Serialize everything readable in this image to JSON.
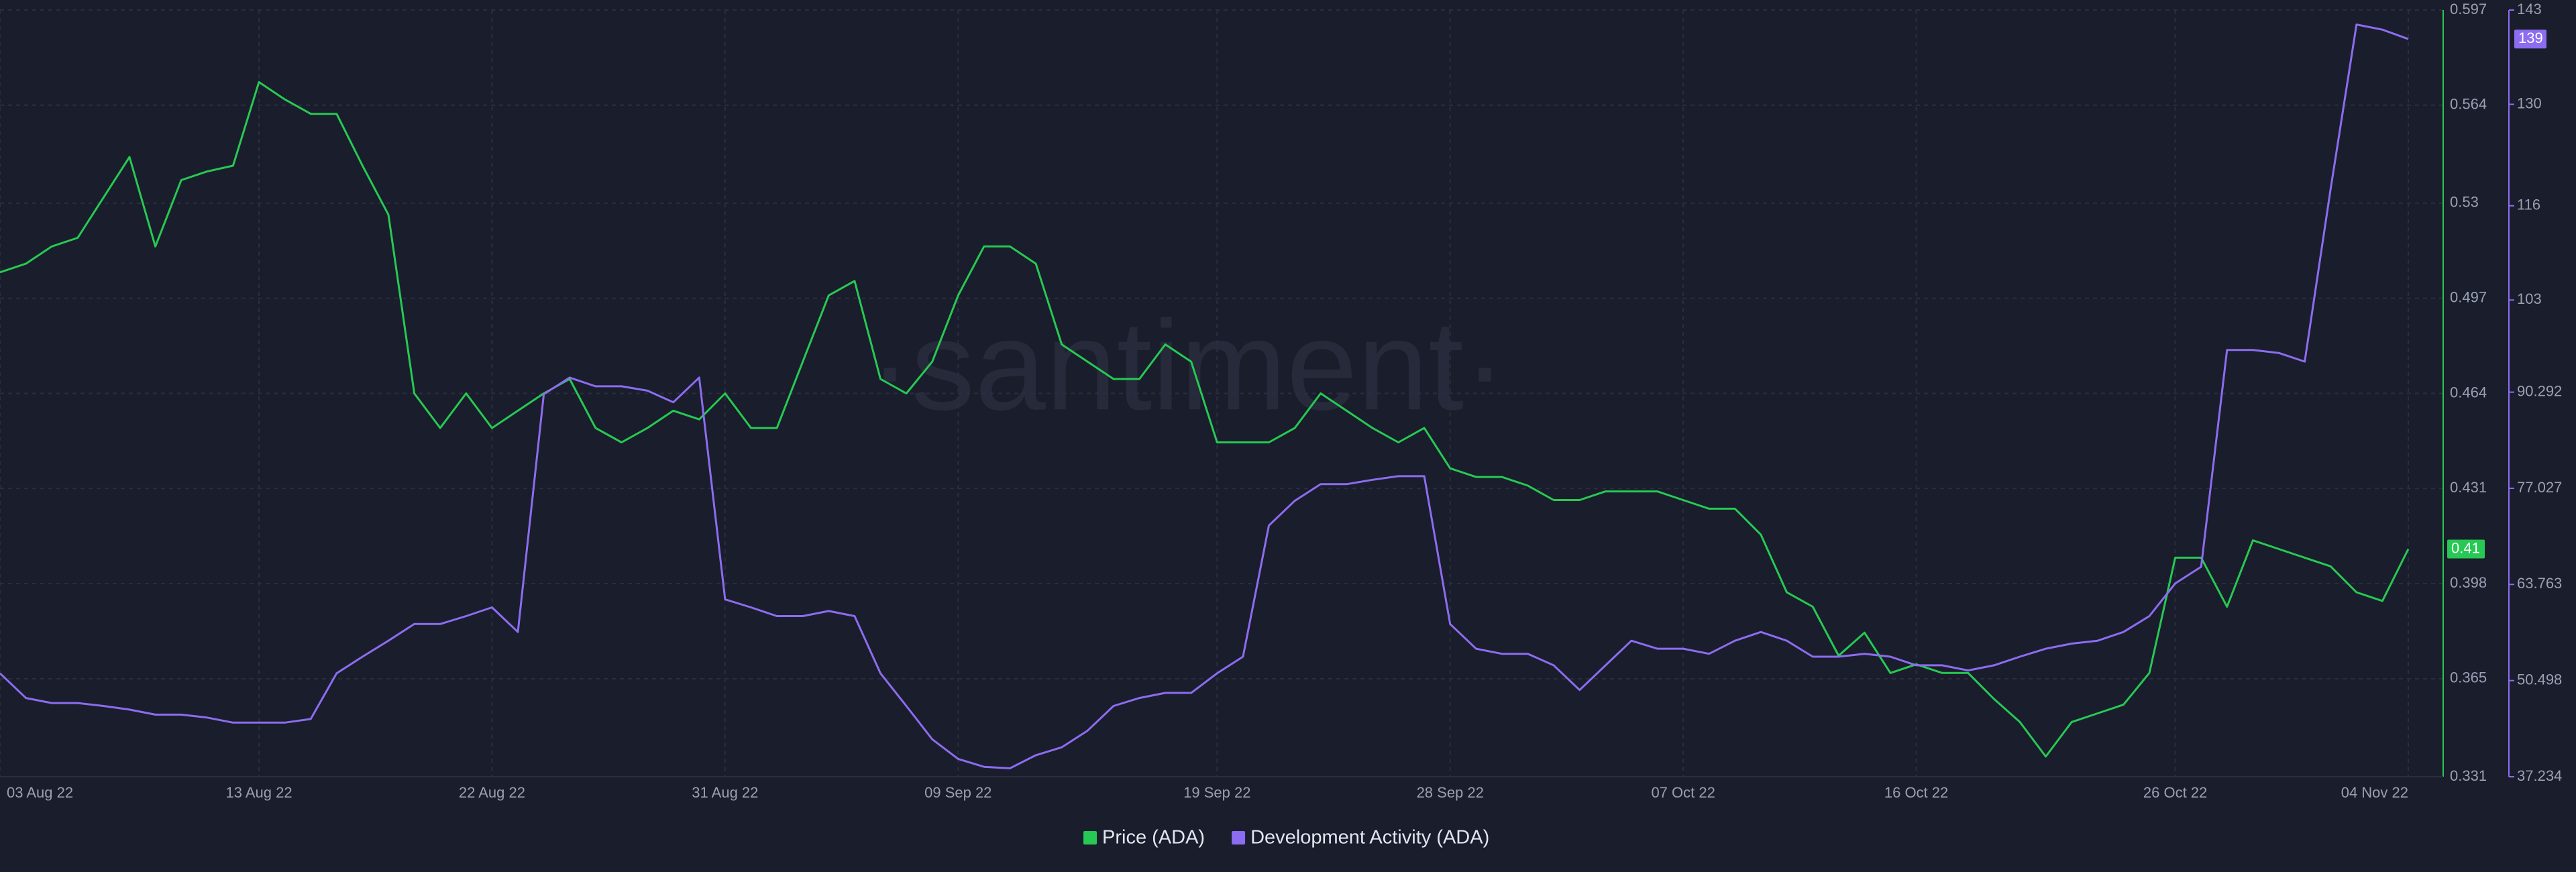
{
  "chart_data": {
    "type": "line",
    "watermark": "·santiment·",
    "categories": [
      "03 Aug 22",
      null,
      null,
      null,
      null,
      null,
      null,
      null,
      null,
      null,
      "13 Aug 22",
      null,
      null,
      null,
      null,
      null,
      null,
      null,
      null,
      "22 Aug 22",
      null,
      null,
      null,
      null,
      null,
      null,
      null,
      null,
      "31 Aug 22",
      null,
      null,
      null,
      null,
      null,
      null,
      null,
      null,
      "09 Sep 22",
      null,
      null,
      null,
      null,
      null,
      null,
      null,
      null,
      null,
      "19 Sep 22",
      null,
      null,
      null,
      null,
      null,
      null,
      null,
      null,
      "28 Sep 22",
      null,
      null,
      null,
      null,
      null,
      null,
      null,
      null,
      "07 Oct 22",
      null,
      null,
      null,
      null,
      null,
      null,
      null,
      null,
      "16 Oct 22",
      null,
      null,
      null,
      null,
      null,
      null,
      null,
      null,
      null,
      "26 Oct 22",
      null,
      null,
      null,
      null,
      null,
      null,
      null,
      null,
      "04 Nov 22"
    ],
    "series": [
      {
        "name": "Price (ADA)",
        "color": "#26c953",
        "axis": "y",
        "values": [
          0.506,
          0.509,
          0.515,
          0.518,
          0.532,
          0.546,
          0.515,
          0.538,
          0.541,
          0.543,
          0.572,
          0.566,
          0.561,
          0.561,
          0.543,
          0.526,
          0.464,
          0.452,
          0.464,
          0.452,
          0.458,
          0.464,
          0.469,
          0.452,
          0.447,
          0.452,
          0.458,
          0.455,
          0.464,
          0.452,
          0.452,
          0.475,
          0.498,
          0.503,
          0.469,
          0.464,
          0.475,
          0.498,
          0.515,
          0.515,
          0.509,
          0.481,
          0.475,
          0.469,
          0.469,
          0.481,
          0.475,
          0.447,
          0.447,
          0.447,
          0.452,
          0.464,
          0.458,
          0.452,
          0.447,
          0.452,
          0.438,
          0.435,
          0.435,
          0.432,
          0.427,
          0.427,
          0.43,
          0.43,
          0.43,
          0.427,
          0.424,
          0.424,
          0.415,
          0.395,
          0.39,
          0.373,
          0.381,
          0.367,
          0.37,
          0.367,
          0.367,
          0.358,
          0.35,
          0.338,
          0.35,
          0.353,
          0.356,
          0.367,
          0.407,
          0.407,
          0.39,
          0.413,
          0.41,
          0.407,
          0.404,
          0.395,
          0.392,
          0.41
        ]
      },
      {
        "name": "Development Activity (ADA)",
        "color": "#8c6cf0",
        "axis": "y2",
        "values": [
          51.5,
          48.1,
          47.4,
          47.4,
          47.0,
          46.5,
          45.8,
          45.8,
          45.4,
          44.7,
          44.7,
          44.7,
          45.2,
          51.5,
          53.8,
          56.0,
          58.3,
          58.3,
          59.4,
          60.6,
          57.2,
          90.0,
          92.3,
          91.1,
          91.1,
          90.5,
          88.9,
          92.3,
          61.7,
          60.6,
          59.4,
          59.4,
          60.1,
          59.4,
          51.5,
          47.0,
          42.4,
          39.7,
          38.6,
          38.4,
          40.2,
          41.3,
          43.6,
          47.0,
          48.1,
          48.8,
          48.8,
          51.5,
          53.8,
          71.9,
          75.3,
          77.6,
          77.6,
          78.2,
          78.7,
          78.7,
          58.3,
          54.9,
          54.2,
          54.2,
          52.6,
          49.2,
          52.6,
          56.0,
          54.9,
          54.9,
          54.2,
          56.0,
          57.2,
          56.0,
          53.8,
          53.8,
          54.2,
          53.8,
          52.6,
          52.6,
          51.9,
          52.6,
          53.8,
          54.9,
          55.6,
          56.0,
          57.2,
          59.4,
          63.9,
          66.2,
          96.1,
          96.1,
          95.7,
          94.5,
          118.3,
          141.0,
          140.3,
          139
        ]
      }
    ],
    "ylim": [
      0.331,
      0.597
    ],
    "yticks": [
      0.331,
      0.365,
      0.398,
      0.431,
      0.464,
      0.497,
      0.53,
      0.564,
      0.597
    ],
    "y2lim": [
      37.234,
      143
    ],
    "y2ticks": [
      37.234,
      50.498,
      63.763,
      77.027,
      90.292,
      103,
      116,
      130,
      143
    ],
    "grid": true,
    "last_value_badge": true,
    "legend": "bottom"
  }
}
